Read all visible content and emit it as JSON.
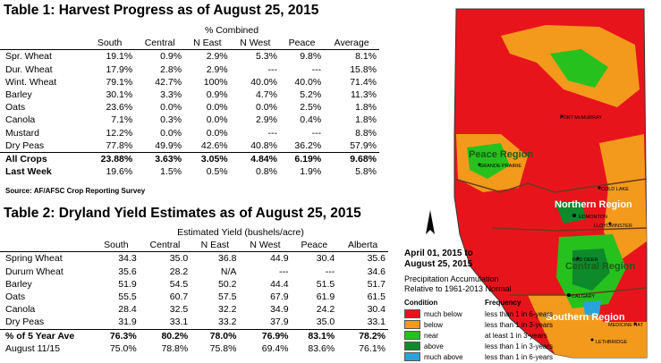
{
  "table1": {
    "title": "Table 1: Harvest Progress as of August 25, 2015",
    "group_header": "% Combined",
    "columns": [
      "South",
      "Central",
      "N East",
      "N West",
      "Peace",
      "Average"
    ],
    "rows": [
      {
        "label": "Spr. Wheat",
        "values": [
          "19.1%",
          "0.9%",
          "2.9%",
          "5.3%",
          "9.8%",
          "8.1%"
        ]
      },
      {
        "label": "Dur. Wheat",
        "values": [
          "17.9%",
          "2.8%",
          "2.9%",
          "---",
          "---",
          "15.8%"
        ]
      },
      {
        "label": "Wint. Wheat",
        "values": [
          "79.1%",
          "42.7%",
          "100%",
          "40.0%",
          "40.0%",
          "71.4%"
        ]
      },
      {
        "label": "Barley",
        "values": [
          "30.1%",
          "3.3%",
          "0.9%",
          "4.7%",
          "5.2%",
          "11.3%"
        ]
      },
      {
        "label": "Oats",
        "values": [
          "23.6%",
          "0.0%",
          "0.0%",
          "0.0%",
          "2.5%",
          "1.8%"
        ]
      },
      {
        "label": "Canola",
        "values": [
          "7.1%",
          "0.3%",
          "0.0%",
          "2.9%",
          "0.4%",
          "1.8%"
        ]
      },
      {
        "label": "Mustard",
        "values": [
          "12.2%",
          "0.0%",
          "0.0%",
          "---",
          "---",
          "8.8%"
        ]
      },
      {
        "label": "Dry Peas",
        "values": [
          "77.8%",
          "49.9%",
          "42.6%",
          "40.8%",
          "36.2%",
          "57.9%"
        ]
      }
    ],
    "all_crops": {
      "label": "All Crops",
      "values": [
        "23.88%",
        "3.63%",
        "3.05%",
        "4.84%",
        "6.19%",
        "9.68%"
      ]
    },
    "last_week": {
      "label": "Last Week",
      "values": [
        "19.6%",
        "1.5%",
        "0.5%",
        "0.8%",
        "1.9%",
        "5.8%"
      ]
    },
    "source": "Source: AF/AFSC Crop Reporting Survey"
  },
  "table2": {
    "title": "Table 2: Dryland Yield Estimates as of August 25, 2015",
    "group_header": "Estimated Yield (bushels/acre)",
    "columns": [
      "South",
      "Central",
      "N East",
      "N West",
      "Peace",
      "Alberta"
    ],
    "rows": [
      {
        "label": "Spring Wheat",
        "values": [
          "34.3",
          "35.0",
          "36.8",
          "44.9",
          "30.4",
          "35.6"
        ]
      },
      {
        "label": "Durum Wheat",
        "values": [
          "35.6",
          "28.2",
          "N/A",
          "---",
          "---",
          "34.6"
        ]
      },
      {
        "label": "Barley",
        "values": [
          "51.9",
          "54.5",
          "50.2",
          "44.4",
          "51.5",
          "51.7"
        ]
      },
      {
        "label": "Oats",
        "values": [
          "55.5",
          "60.7",
          "57.5",
          "67.9",
          "61.9",
          "61.5"
        ]
      },
      {
        "label": "Canola",
        "values": [
          "28.4",
          "32.5",
          "32.2",
          "34.9",
          "24.2",
          "30.4"
        ]
      },
      {
        "label": "Dry Peas",
        "values": [
          "31.9",
          "33.1",
          "33.2",
          "37.9",
          "35.0",
          "33.1"
        ]
      }
    ],
    "pct_5yr": {
      "label": "% of 5 Year Ave",
      "values": [
        "76.3%",
        "80.2%",
        "78.0%",
        "76.9%",
        "83.1%",
        "78.2%"
      ]
    },
    "aug11": {
      "label": "August 11/15",
      "values": [
        "75.0%",
        "78.8%",
        "75.8%",
        "69.4%",
        "83.6%",
        "76.1%"
      ]
    }
  },
  "map": {
    "period_line1": "April 01, 2015 to",
    "period_line2": "August 25, 2015",
    "subtitle_line1": "Precipitation Accumulation",
    "subtitle_line2": "Relative to 1961-2013 Normal",
    "regions": {
      "peace": "Peace Region",
      "northern": "Northern Region",
      "central": "Central Region",
      "southern": "Southern Region"
    },
    "cities": {
      "fort_mcmurray": "FORT McMURRAY",
      "grande_prairie": "GRANDE PRAIRIE",
      "cold_lake": "COLD LAKE",
      "edmonton": "EDMONTON",
      "lloydminster": "LLOYDMINSTER",
      "red_deer": "RED DEER",
      "calgary": "CALGARY",
      "medicine_hat": "MEDICINE HAT",
      "lethbridge": "LETHBRIDGE"
    },
    "legend": {
      "condition_header": "Condition",
      "frequency_header": "Frequency",
      "items": [
        {
          "condition": "much below",
          "frequency": "less than 1 in 6-years",
          "color": "#e8141c"
        },
        {
          "condition": "below",
          "frequency": "less than 1 in 3-years",
          "color": "#f39a1c"
        },
        {
          "condition": "near",
          "frequency": "at least 1 in 3-years",
          "color": "#27c11e"
        },
        {
          "condition": "above",
          "frequency": "less than 1 in 3-years",
          "color": "#0c8a2c"
        },
        {
          "condition": "much above",
          "frequency": "less than 1 in 6-years",
          "color": "#2aa3dc"
        }
      ]
    }
  }
}
